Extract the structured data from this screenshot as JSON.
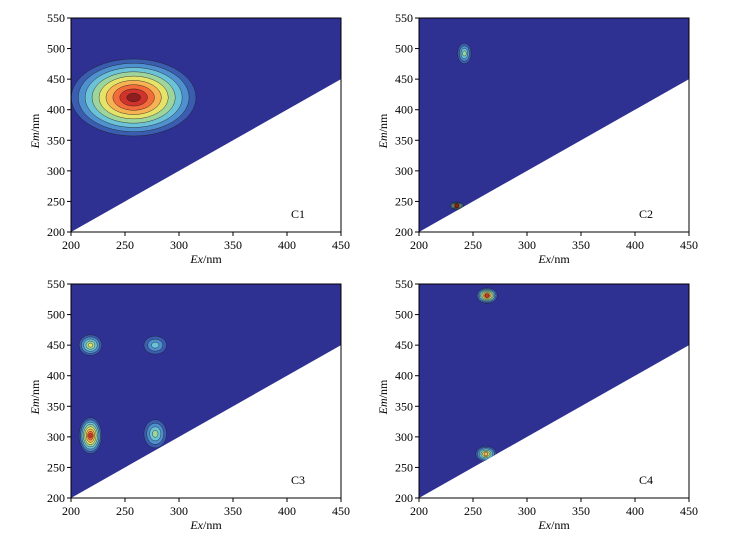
{
  "colors": {
    "background": "#2E3192",
    "level1": "#3A5DB0",
    "level2": "#4F90CE",
    "level3": "#6CC3D8",
    "level4": "#9DD59D",
    "level5": "#E6E36A",
    "level6": "#F7B253",
    "level7": "#F26B3A",
    "level8": "#D0332B",
    "level9": "#8E1D1D",
    "scatter_region": "#ffffff",
    "contour_line": "#1a1a1a"
  },
  "chart_data": [
    {
      "type": "heatmap",
      "panel": "C1",
      "xlabel": "Ex/nm",
      "ylabel": "Em/nm",
      "xlim": [
        200,
        450
      ],
      "ylim": [
        200,
        550
      ],
      "x_ticks": [
        200,
        250,
        300,
        350,
        400,
        450
      ],
      "y_ticks": [
        200,
        250,
        300,
        350,
        400,
        450,
        500,
        550
      ],
      "peaks": [
        {
          "ex": 258,
          "em": 420,
          "level": 9,
          "spread_ex": 55,
          "spread_em": 60
        }
      ]
    },
    {
      "type": "heatmap",
      "panel": "C2",
      "xlabel": "Ex/nm",
      "ylabel": "Em/nm",
      "xlim": [
        200,
        450
      ],
      "ylim": [
        200,
        550
      ],
      "x_ticks": [
        200,
        250,
        300,
        350,
        400,
        450
      ],
      "y_ticks": [
        200,
        250,
        300,
        350,
        400,
        450,
        500,
        550
      ],
      "peaks": [
        {
          "ex": 242,
          "em": 492,
          "level": 4,
          "spread_ex": 6,
          "spread_em": 16
        },
        {
          "ex": 235,
          "em": 243,
          "level": 9,
          "spread_ex": 6,
          "spread_em": 6
        }
      ]
    },
    {
      "type": "heatmap",
      "panel": "C3",
      "xlabel": "Ex/nm",
      "ylabel": "Em/nm",
      "xlim": [
        200,
        450
      ],
      "ylim": [
        200,
        550
      ],
      "x_ticks": [
        200,
        250,
        300,
        350,
        400,
        450
      ],
      "y_ticks": [
        200,
        250,
        300,
        350,
        400,
        450,
        500,
        550
      ],
      "peaks": [
        {
          "ex": 218,
          "em": 302,
          "level": 8,
          "spread_ex": 10,
          "spread_em": 28
        },
        {
          "ex": 218,
          "em": 450,
          "level": 5,
          "spread_ex": 10,
          "spread_em": 16
        },
        {
          "ex": 278,
          "em": 305,
          "level": 4,
          "spread_ex": 10,
          "spread_em": 22
        },
        {
          "ex": 278,
          "em": 450,
          "level": 3,
          "spread_ex": 10,
          "spread_em": 14
        }
      ]
    },
    {
      "type": "heatmap",
      "panel": "C4",
      "xlabel": "Ex/nm",
      "ylabel": "Em/nm",
      "xlim": [
        200,
        450
      ],
      "ylim": [
        200,
        550
      ],
      "x_ticks": [
        200,
        250,
        300,
        350,
        400,
        450
      ],
      "y_ticks": [
        200,
        250,
        300,
        350,
        400,
        450,
        500,
        550
      ],
      "peaks": [
        {
          "ex": 263,
          "em": 531,
          "level": 8,
          "spread_ex": 9,
          "spread_em": 12
        },
        {
          "ex": 262,
          "em": 272,
          "level": 6,
          "spread_ex": 9,
          "spread_em": 12
        }
      ]
    }
  ]
}
